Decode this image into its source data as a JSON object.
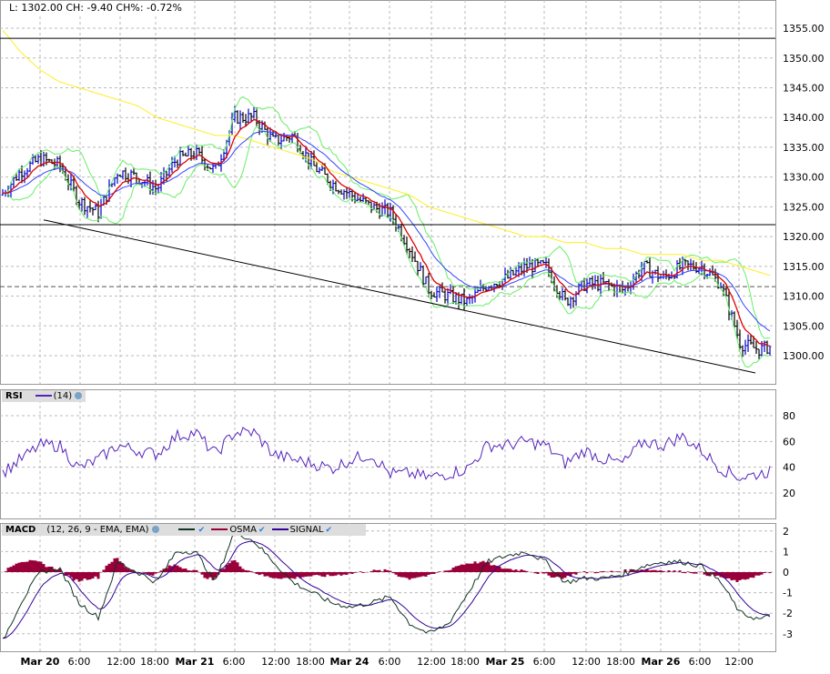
{
  "header": {
    "text": "L: 1302.00 CH: -9.40 CH%: -0.72%"
  },
  "rsi_legend": {
    "label": "RSI",
    "params": "(14)"
  },
  "macd_legend": {
    "label": "MACD",
    "params": "(12, 26, 9 - EMA, EMA)",
    "osma": "OSMA",
    "signal": "SIGNAL"
  },
  "colors": {
    "up": "#0000cc",
    "down": "#000000",
    "ema_fast": "#dd0000",
    "ema_slow": "#3344ff",
    "envelope": "#66ee66",
    "ma_long": "#ffee22",
    "rsi": "#5522bb",
    "macd": "#113322",
    "signal": "#330099",
    "osma": "#99003a"
  },
  "chart_data": [
    {
      "type": "candlestick",
      "title": "",
      "y_ticks": [
        1300,
        1305,
        1310,
        1315,
        1320,
        1325,
        1330,
        1335,
        1340,
        1345,
        1350,
        1355
      ],
      "ylim": [
        1296,
        1359
      ],
      "x_ticks": [
        "Mar 20",
        "6:00",
        "12:00",
        "18:00",
        "Mar 21",
        "6:00",
        "12:00",
        "18:00",
        "Mar 24",
        "6:00",
        "12:00",
        "18:00",
        "Mar 25",
        "6:00",
        "12:00",
        "18:00",
        "Mar 26",
        "6:00",
        "12:00"
      ],
      "x_tick_bold": [
        true,
        false,
        false,
        false,
        true,
        false,
        false,
        false,
        true,
        false,
        false,
        false,
        true,
        false,
        false,
        false,
        true,
        false,
        false
      ],
      "start": "Mar 19 18:00",
      "interval_hours": 3,
      "close": [
        1327,
        1331,
        1333,
        1332,
        1326,
        1324,
        1331,
        1330,
        1328,
        1333,
        1334,
        1331,
        1340,
        1340,
        1336,
        1337,
        1332,
        1329,
        1327,
        1325,
        1324,
        1318,
        1311,
        1310,
        1309,
        1312,
        1313,
        1315,
        1315,
        1309,
        1312,
        1312,
        1311,
        1315,
        1313,
        1315,
        1315,
        1312,
        1302,
        1301,
        1302
      ],
      "ma_long": [
        1355,
        1351,
        1348,
        1346,
        1345,
        1344,
        1343,
        1342,
        1340,
        1339,
        1338,
        1337,
        1337,
        1336,
        1335,
        1334,
        1333,
        1331,
        1330,
        1329,
        1328,
        1327,
        1325,
        1324,
        1323,
        1322,
        1321,
        1320,
        1320,
        1319,
        1319,
        1318,
        1318,
        1317,
        1317,
        1317,
        1316,
        1316,
        1315,
        1314,
        1313
      ],
      "horizontal_lines": [
        1353.3,
        1322.0
      ],
      "dashed_line": 1311.6,
      "trendline": [
        [
          "Mar 20 00:30",
          1322.8
        ],
        [
          "Mar 26 14:30",
          1297.1
        ]
      ]
    },
    {
      "type": "line",
      "name": "RSI",
      "params": "(14)",
      "y_ticks": [
        20,
        40,
        60,
        80
      ],
      "ylim": [
        5,
        95
      ],
      "values": [
        35,
        46,
        57,
        57,
        39,
        46,
        57,
        53,
        50,
        64,
        67,
        50,
        67,
        67,
        50,
        46,
        43,
        39,
        46,
        50,
        35,
        35,
        32,
        35,
        39,
        57,
        57,
        60,
        57,
        43,
        53,
        46,
        43,
        60,
        57,
        64,
        53,
        39,
        32,
        35,
        39
      ]
    },
    {
      "type": "line",
      "name": "MACD",
      "params": "(12, 26, 9 - EMA, EMA)",
      "y_ticks": [
        -3,
        -2,
        -1,
        0,
        1,
        2
      ],
      "ylim": [
        -3.8,
        2.4
      ],
      "macd": [
        -3.5,
        -1.5,
        0,
        0.2,
        -1.5,
        -2.2,
        0.5,
        0,
        -0.5,
        1.0,
        1.0,
        -0.5,
        2.0,
        1.5,
        0.5,
        -0.5,
        -1.0,
        -1.5,
        -1.7,
        -1.5,
        -1.2,
        -2.5,
        -3.0,
        -2.5,
        -1.0,
        0.5,
        0.8,
        1.0,
        0.5,
        -0.5,
        -0.3,
        -0.3,
        -0.1,
        0.3,
        0.5,
        0.5,
        0.3,
        -0.5,
        -2.0,
        -2.3,
        -2.0
      ],
      "series": [
        "MACD",
        "OSMA",
        "SIGNAL"
      ]
    }
  ]
}
